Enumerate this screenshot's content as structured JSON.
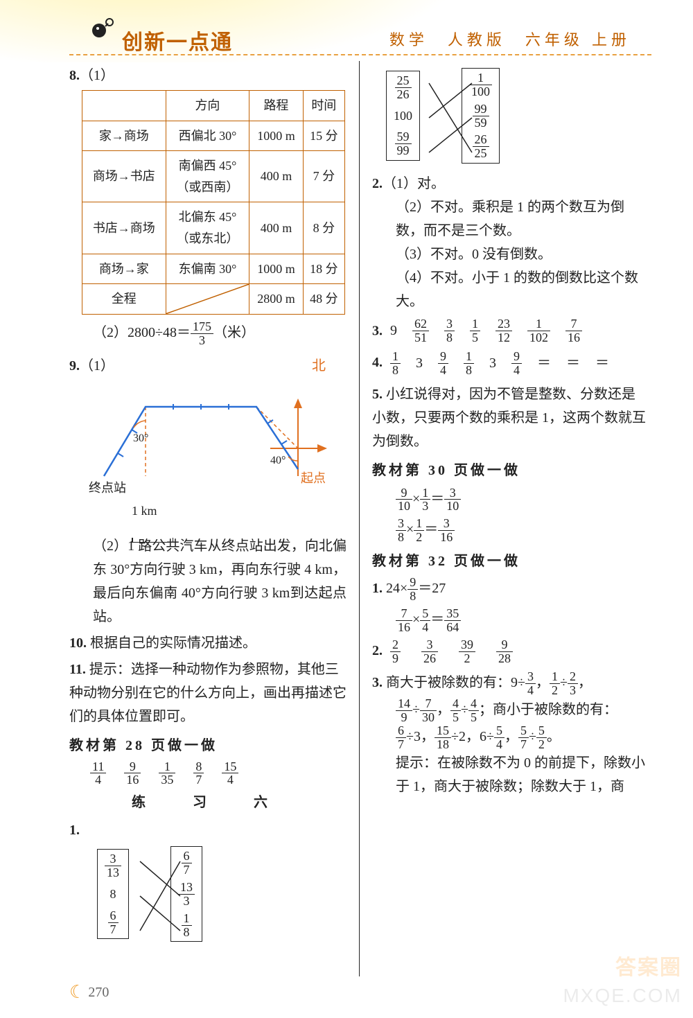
{
  "header": {
    "main_title": "创新一点通",
    "sub_title": "数学　人教版　六年级 上册"
  },
  "page_number": "270",
  "left": {
    "q8_label": "8.",
    "q8_1": "（1）",
    "table": {
      "headers": [
        "",
        "方向",
        "路程",
        "时间"
      ],
      "rows": [
        [
          "家→商场",
          "西偏北 30°",
          "1000 m",
          "15 分"
        ],
        [
          "商场→书店",
          "南偏西 45°\n（或西南）",
          "400 m",
          "7 分"
        ],
        [
          "书店→商场",
          "北偏东 45°\n（或东北）",
          "400 m",
          "8 分"
        ],
        [
          "商场→家",
          "东偏南 30°",
          "1000 m",
          "18 分"
        ],
        [
          "全程",
          "",
          "2800 m",
          "48 分"
        ]
      ]
    },
    "q8_2_prefix": "（2）2800÷48＝",
    "q8_2_frac": {
      "n": "175",
      "d": "3"
    },
    "q8_2_suffix": "（米）",
    "q9_label": "9.",
    "q9_1": "（1）",
    "diagram": {
      "north": "北",
      "start": "起点",
      "end": "终点站",
      "angle1": "30°",
      "angle2": "40°",
      "scale": "1 km",
      "color_orange": "#e07020",
      "color_blue": "#2a6fd6"
    },
    "q9_2": "（2）1 路公共汽车从终点站出发，向北偏东 30°方向行驶 3 km，再向东行驶 4 km，最后向东偏南 40°方向行驶 3 km到达起点站。",
    "q10_label": "10.",
    "q10": "根据自己的实际情况描述。",
    "q11_label": "11.",
    "q11": "提示：选择一种动物作为参照物，其他三种动物分别在它的什么方向上，画出再描述它们的具体位置即可。",
    "sec28": "教材第 28 页做一做",
    "p28_fracs": [
      {
        "n": "11",
        "d": "4"
      },
      {
        "n": "9",
        "d": "16"
      },
      {
        "n": "1",
        "d": "35"
      },
      {
        "n": "8",
        "d": "7"
      },
      {
        "n": "15",
        "d": "4"
      }
    ],
    "ex6_title": "练　习　六",
    "match1": {
      "left": [
        {
          "n": "3",
          "d": "13"
        },
        "8",
        {
          "n": "6",
          "d": "7"
        }
      ],
      "right": [
        {
          "n": "6",
          "d": "7"
        },
        {
          "n": "13",
          "d": "3"
        },
        {
          "n": "1",
          "d": "8"
        }
      ]
    }
  },
  "right": {
    "match2": {
      "left": [
        {
          "n": "25",
          "d": "26"
        },
        "100",
        {
          "n": "59",
          "d": "99"
        }
      ],
      "right": [
        {
          "n": "1",
          "d": "100"
        },
        {
          "n": "99",
          "d": "59"
        },
        {
          "n": "26",
          "d": "25"
        }
      ]
    },
    "q2_label": "2.",
    "q2_1": "（1）对。",
    "q2_2": "（2）不对。乘积是 1 的两个数互为倒数，而不是三个数。",
    "q2_3": "（3）不对。0 没有倒数。",
    "q2_4": "（4）不对。小于 1 的数的倒数比这个数大。",
    "q3_label": "3.",
    "q3_items": [
      "9",
      {
        "n": "62",
        "d": "51"
      },
      {
        "n": "3",
        "d": "8"
      },
      {
        "n": "1",
        "d": "5"
      },
      {
        "n": "23",
        "d": "12"
      },
      {
        "n": "1",
        "d": "102"
      },
      {
        "n": "7",
        "d": "16"
      }
    ],
    "q4_label": "4.",
    "q4_items": [
      {
        "n": "1",
        "d": "8"
      },
      "3",
      {
        "n": "9",
        "d": "4"
      },
      {
        "n": "1",
        "d": "8"
      },
      "3",
      {
        "n": "9",
        "d": "4"
      },
      "＝",
      "＝",
      "＝"
    ],
    "q5_label": "5.",
    "q5": "小红说得对，因为不管是整数、分数还是小数，只要两个数的乘积是 1，这两个数就互为倒数。",
    "sec30": "教材第 30 页做一做",
    "eq30_1": {
      "a": {
        "n": "9",
        "d": "10"
      },
      "b": {
        "n": "1",
        "d": "3"
      },
      "r": {
        "n": "3",
        "d": "10"
      }
    },
    "eq30_2": {
      "a": {
        "n": "3",
        "d": "8"
      },
      "b": {
        "n": "1",
        "d": "2"
      },
      "r": {
        "n": "3",
        "d": "16"
      }
    },
    "sec32": "教材第 32 页做一做",
    "q32_1_label": "1.",
    "q32_1a": {
      "pre": "24×",
      "f": {
        "n": "9",
        "d": "8"
      },
      "post": "＝27"
    },
    "q32_1b": {
      "a": {
        "n": "7",
        "d": "16"
      },
      "b": {
        "n": "5",
        "d": "4"
      },
      "r": {
        "n": "35",
        "d": "64"
      }
    },
    "q32_2_label": "2.",
    "q32_2": [
      {
        "n": "2",
        "d": "9"
      },
      {
        "n": "3",
        "d": "26"
      },
      {
        "n": "39",
        "d": "2"
      },
      {
        "n": "9",
        "d": "28"
      }
    ],
    "q32_3_label": "3.",
    "q32_3_line1_pre": "商大于被除数的有：9÷",
    "q32_3_line1_f1": {
      "n": "3",
      "d": "4"
    },
    "q32_3_line1_mid": "，",
    "q32_3_line1_f2": {
      "n": "1",
      "d": "2"
    },
    "q32_3_line1_div": "÷",
    "q32_3_line1_f3": {
      "n": "2",
      "d": "3"
    },
    "q32_3_line1_end": "，",
    "q32_3_line2": [
      {
        "n": "14",
        "d": "9"
      },
      "÷",
      {
        "n": "7",
        "d": "30"
      },
      "，",
      {
        "n": "4",
        "d": "5"
      },
      "÷",
      {
        "n": "4",
        "d": "5"
      },
      "；商小于被除数的有："
    ],
    "q32_3_line3": [
      {
        "n": "6",
        "d": "7"
      },
      "÷3，",
      {
        "n": "15",
        "d": "18"
      },
      "÷2，6÷",
      {
        "n": "5",
        "d": "4"
      },
      "，",
      {
        "n": "5",
        "d": "7"
      },
      "÷",
      {
        "n": "5",
        "d": "2"
      },
      "。"
    ],
    "q32_3_hint": "提示：在被除数不为 0 的前提下，除数小于 1，商大于被除数；除数大于 1，商"
  },
  "watermark1": "MXQE.COM",
  "watermark2": "答案圈"
}
